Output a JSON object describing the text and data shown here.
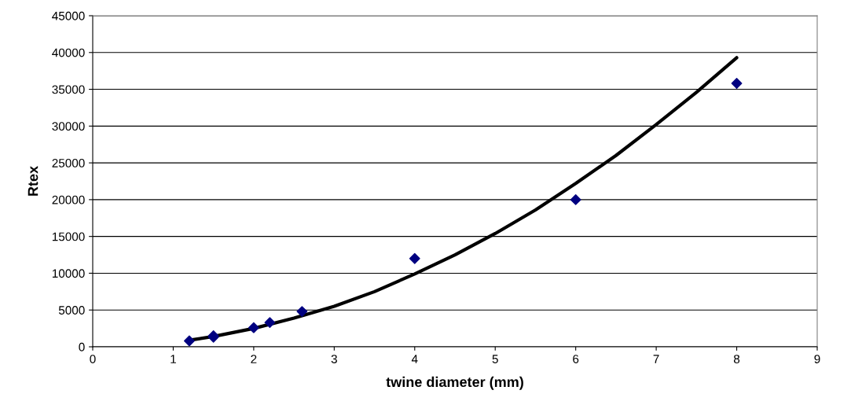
{
  "chart_data": {
    "type": "scatter",
    "xlabel": "twine diameter (mm)",
    "ylabel": "Rtex",
    "xlim": [
      0,
      9
    ],
    "xticks": [
      0,
      1,
      2,
      3,
      4,
      5,
      6,
      7,
      8,
      9
    ],
    "ylim": [
      0,
      45000
    ],
    "yticks": [
      0,
      5000,
      10000,
      15000,
      20000,
      25000,
      30000,
      35000,
      40000,
      45000
    ],
    "grid": "y",
    "legend": false,
    "series": [
      {
        "marker": "diamond",
        "color": "#000080",
        "x": [
          1.2,
          1.5,
          1.5,
          2.0,
          2.2,
          2.6,
          4,
          6,
          8
        ],
        "values": [
          800,
          1500,
          1300,
          2600,
          3300,
          4800,
          12000,
          20000,
          35800
        ]
      },
      {
        "type": "line",
        "marker": "none",
        "line_style": "solid",
        "color": "#000000",
        "x": [
          1.2,
          1.5,
          2,
          2.5,
          3,
          3.5,
          4,
          4.5,
          5,
          5.5,
          6,
          6.5,
          7,
          7.5,
          8
        ],
        "values": [
          900,
          1400,
          2500,
          3900,
          5500,
          7500,
          9900,
          12500,
          15400,
          18600,
          22200,
          26000,
          30200,
          34600,
          39300
        ]
      }
    ]
  }
}
